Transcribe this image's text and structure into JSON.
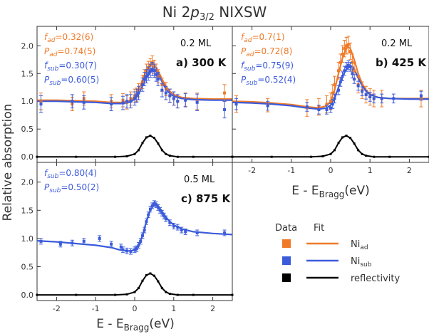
{
  "figure": {
    "title_main": "Ni 2",
    "title_p": "p",
    "title_sub": "3/2",
    "title_end": " NIXSW",
    "ylabel": "Relative absorption",
    "xlabel_main": "E - E",
    "xlabel_sub": "Bragg",
    "xlabel_unit": "(eV)"
  },
  "colors": {
    "ad": "#f07a28",
    "sub": "#3b5bdb",
    "refl": "#000000",
    "axis": "#333333"
  },
  "panels": [
    {
      "id": "a",
      "coverage": "0.2 ML",
      "label": "a) 300 K",
      "params": [
        {
          "sym": "f",
          "sub": "ad",
          "val": "=0.32(6)",
          "kind": "ad"
        },
        {
          "sym": "P",
          "sub": "ad",
          "val": "=0.74(5)",
          "kind": "ad"
        },
        {
          "sym": "f",
          "sub": "sub",
          "val": "=0.30(7)",
          "kind": "sub"
        },
        {
          "sym": "P",
          "sub": "sub",
          "val": "=0.60(5)",
          "kind": "sub"
        }
      ]
    },
    {
      "id": "b",
      "coverage": "0.2 ML",
      "label": "b) 425 K",
      "params": [
        {
          "sym": "f",
          "sub": "ad",
          "val": "=0.7(1)",
          "kind": "ad"
        },
        {
          "sym": "P",
          "sub": "ad",
          "val": "=0.72(8)",
          "kind": "ad"
        },
        {
          "sym": "f",
          "sub": "sub",
          "val": "=0.75(9)",
          "kind": "sub"
        },
        {
          "sym": "P",
          "sub": "sub",
          "val": "=0.52(4)",
          "kind": "sub"
        }
      ]
    },
    {
      "id": "c",
      "coverage": "0.5 ML",
      "label": "c) 875 K",
      "params": [
        {
          "sym": "f",
          "sub": "sub",
          "val": "=0.80(4)",
          "kind": "sub"
        },
        {
          "sym": "P",
          "sub": "sub",
          "val": "=0.50(2)",
          "kind": "sub"
        }
      ]
    }
  ],
  "legend": {
    "data_header": "Data",
    "fit_header": "Fit",
    "entries": [
      {
        "base": "Ni",
        "sub": "ad",
        "kind": "ad"
      },
      {
        "base": "Ni",
        "sub": "sub",
        "kind": "sub"
      },
      {
        "base": "reflectivity",
        "sub": "",
        "kind": "refl"
      }
    ]
  },
  "chart_data": [
    {
      "type": "line",
      "panel": "a",
      "xlim": [
        -2.5,
        2.5
      ],
      "ylim": [
        -0.1,
        2.35
      ],
      "xticks": [
        -2,
        -1,
        0,
        1,
        2
      ],
      "xticklabels_visible": false,
      "yticks": [
        0.0,
        0.5,
        1.0,
        1.5,
        2.0
      ],
      "yticklabels": [
        "0.0",
        "0.5",
        "1.0",
        "1.5",
        "2.0"
      ],
      "series": [
        {
          "name": "Ni_ad data",
          "kind": "ad",
          "role": "data",
          "x": [
            -2.4,
            -1.6,
            -1.3,
            -0.6,
            -0.3,
            -0.2,
            -0.1,
            0.0,
            0.05,
            0.1,
            0.2,
            0.25,
            0.3,
            0.35,
            0.4,
            0.45,
            0.5,
            0.55,
            0.6,
            0.7,
            0.8,
            0.9,
            1.0,
            1.1,
            1.3,
            1.6,
            2.3
          ],
          "y": [
            1.0,
            0.95,
            1.05,
            1.0,
            1.02,
            0.98,
            1.05,
            1.1,
            1.12,
            1.2,
            1.35,
            1.45,
            1.55,
            1.6,
            1.65,
            1.7,
            1.62,
            1.55,
            1.45,
            1.3,
            1.22,
            1.1,
            1.05,
            1.0,
            1.03,
            1.0,
            1.15
          ],
          "err": [
            0.15,
            0.12,
            0.12,
            0.12,
            0.12,
            0.12,
            0.12,
            0.12,
            0.12,
            0.12,
            0.12,
            0.12,
            0.12,
            0.12,
            0.12,
            0.12,
            0.12,
            0.12,
            0.12,
            0.12,
            0.12,
            0.12,
            0.12,
            0.12,
            0.12,
            0.15,
            0.15
          ]
        },
        {
          "name": "Ni_sub data",
          "kind": "sub",
          "role": "data",
          "x": [
            -2.4,
            -1.6,
            -1.3,
            -0.6,
            -0.3,
            -0.2,
            -0.1,
            0.0,
            0.05,
            0.1,
            0.2,
            0.25,
            0.3,
            0.35,
            0.4,
            0.45,
            0.5,
            0.55,
            0.6,
            0.7,
            0.8,
            0.9,
            1.0,
            1.1,
            1.3,
            1.6,
            2.3
          ],
          "y": [
            0.95,
            1.0,
            0.98,
            0.95,
            0.97,
            1.0,
            1.0,
            1.05,
            1.1,
            1.15,
            1.3,
            1.4,
            1.45,
            1.5,
            1.55,
            1.58,
            1.55,
            1.48,
            1.4,
            1.2,
            1.15,
            1.1,
            1.05,
            1.0,
            1.02,
            0.98,
            0.85
          ],
          "err": [
            0.15,
            0.12,
            0.12,
            0.12,
            0.12,
            0.12,
            0.12,
            0.12,
            0.12,
            0.12,
            0.12,
            0.12,
            0.12,
            0.12,
            0.12,
            0.12,
            0.12,
            0.12,
            0.12,
            0.12,
            0.12,
            0.12,
            0.12,
            0.12,
            0.12,
            0.15,
            0.15
          ]
        },
        {
          "name": "Ni_ad fit",
          "kind": "ad",
          "role": "fit",
          "x": [
            -2.5,
            -2.0,
            -1.5,
            -1.0,
            -0.6,
            -0.3,
            -0.1,
            0.0,
            0.1,
            0.2,
            0.3,
            0.4,
            0.45,
            0.5,
            0.6,
            0.7,
            0.8,
            0.9,
            1.0,
            1.2,
            1.5,
            2.0,
            2.5
          ],
          "y": [
            1.02,
            1.02,
            1.01,
            1.0,
            0.98,
            0.98,
            1.02,
            1.08,
            1.2,
            1.38,
            1.55,
            1.66,
            1.68,
            1.66,
            1.55,
            1.4,
            1.27,
            1.18,
            1.12,
            1.07,
            1.05,
            1.04,
            1.04
          ]
        },
        {
          "name": "Ni_sub fit",
          "kind": "sub",
          "role": "fit",
          "x": [
            -2.5,
            -2.0,
            -1.5,
            -1.0,
            -0.6,
            -0.3,
            -0.1,
            0.0,
            0.1,
            0.2,
            0.3,
            0.4,
            0.5,
            0.55,
            0.6,
            0.7,
            0.8,
            0.9,
            1.0,
            1.2,
            1.5,
            2.0,
            2.5
          ],
          "y": [
            1.0,
            1.0,
            0.99,
            0.98,
            0.96,
            0.96,
            0.99,
            1.04,
            1.13,
            1.28,
            1.42,
            1.52,
            1.57,
            1.56,
            1.5,
            1.35,
            1.22,
            1.14,
            1.09,
            1.05,
            1.03,
            1.02,
            1.02
          ]
        },
        {
          "name": "reflectivity",
          "kind": "refl",
          "role": "fit",
          "x": [
            -2.5,
            -1.5,
            -0.5,
            -0.2,
            0.0,
            0.1,
            0.2,
            0.3,
            0.4,
            0.5,
            0.6,
            0.7,
            0.8,
            0.9,
            1.1,
            1.5,
            2.5
          ],
          "y": [
            0.0,
            0.0,
            0.0,
            0.01,
            0.05,
            0.12,
            0.25,
            0.35,
            0.38,
            0.34,
            0.24,
            0.12,
            0.05,
            0.02,
            0.0,
            0.0,
            0.0
          ]
        }
      ]
    },
    {
      "type": "line",
      "panel": "b",
      "xlim": [
        -2.5,
        2.5
      ],
      "ylim": [
        -0.1,
        2.35
      ],
      "xticks": [
        -2,
        -1,
        0,
        1,
        2
      ],
      "xticklabels": [
        "-2",
        "-1",
        "0",
        "1",
        "2"
      ],
      "series": [
        {
          "name": "Ni_ad data",
          "kind": "ad",
          "role": "data",
          "x": [
            -2.4,
            -1.6,
            -0.6,
            -0.3,
            -0.1,
            0.0,
            0.05,
            0.1,
            0.2,
            0.25,
            0.3,
            0.35,
            0.4,
            0.45,
            0.5,
            0.55,
            0.6,
            0.7,
            0.8,
            0.9,
            1.0,
            1.1,
            1.3,
            2.3
          ],
          "y": [
            0.95,
            0.93,
            0.88,
            0.9,
            0.95,
            1.0,
            1.15,
            1.3,
            1.55,
            1.7,
            1.85,
            1.95,
            2.0,
            2.02,
            1.9,
            1.7,
            1.55,
            1.3,
            1.2,
            1.12,
            1.08,
            1.05,
            1.05,
            1.05
          ],
          "err": [
            0.15,
            0.12,
            0.15,
            0.15,
            0.15,
            0.15,
            0.15,
            0.15,
            0.15,
            0.15,
            0.15,
            0.15,
            0.15,
            0.15,
            0.15,
            0.15,
            0.15,
            0.15,
            0.15,
            0.15,
            0.15,
            0.15,
            0.15,
            0.15
          ]
        },
        {
          "name": "Ni_sub data",
          "kind": "sub",
          "role": "data",
          "x": [
            -2.4,
            -1.6,
            -0.6,
            -0.3,
            -0.1,
            0.0,
            0.05,
            0.1,
            0.2,
            0.25,
            0.3,
            0.35,
            0.4,
            0.45,
            0.5,
            0.55,
            0.6,
            0.7,
            0.8,
            0.9,
            1.0,
            1.1,
            1.3,
            1.6,
            2.3
          ],
          "y": [
            0.95,
            0.92,
            0.9,
            0.85,
            0.85,
            0.88,
            0.95,
            1.05,
            1.2,
            1.35,
            1.45,
            1.55,
            1.62,
            1.65,
            1.62,
            1.5,
            1.4,
            1.28,
            1.18,
            1.12,
            1.08,
            1.05,
            1.05,
            1.05,
            1.1
          ],
          "err": [
            0.1,
            0.08,
            0.08,
            0.08,
            0.08,
            0.08,
            0.08,
            0.08,
            0.08,
            0.08,
            0.08,
            0.08,
            0.08,
            0.08,
            0.08,
            0.08,
            0.08,
            0.08,
            0.08,
            0.08,
            0.08,
            0.08,
            0.08,
            0.08,
            0.08
          ]
        },
        {
          "name": "Ni_ad fit",
          "kind": "ad",
          "role": "fit",
          "x": [
            -2.5,
            -2.0,
            -1.5,
            -1.0,
            -0.6,
            -0.3,
            -0.1,
            0.0,
            0.1,
            0.2,
            0.3,
            0.4,
            0.45,
            0.5,
            0.6,
            0.7,
            0.8,
            0.9,
            1.0,
            1.2,
            1.5,
            2.0,
            2.5
          ],
          "y": [
            1.0,
            0.99,
            0.97,
            0.94,
            0.9,
            0.88,
            0.92,
            1.0,
            1.2,
            1.5,
            1.78,
            1.95,
            1.98,
            1.95,
            1.75,
            1.5,
            1.32,
            1.2,
            1.13,
            1.07,
            1.05,
            1.05,
            1.05
          ]
        },
        {
          "name": "Ni_sub fit",
          "kind": "sub",
          "role": "fit",
          "x": [
            -2.5,
            -2.0,
            -1.5,
            -1.0,
            -0.6,
            -0.3,
            -0.1,
            0.0,
            0.1,
            0.2,
            0.3,
            0.4,
            0.5,
            0.55,
            0.6,
            0.7,
            0.8,
            0.9,
            1.0,
            1.2,
            1.5,
            2.0,
            2.5
          ],
          "y": [
            0.98,
            0.97,
            0.95,
            0.92,
            0.88,
            0.86,
            0.88,
            0.93,
            1.05,
            1.25,
            1.45,
            1.58,
            1.64,
            1.63,
            1.58,
            1.42,
            1.28,
            1.18,
            1.12,
            1.07,
            1.05,
            1.04,
            1.04
          ]
        },
        {
          "name": "reflectivity",
          "kind": "refl",
          "role": "fit",
          "x": [
            -2.5,
            -1.5,
            -0.5,
            -0.2,
            0.0,
            0.1,
            0.2,
            0.3,
            0.4,
            0.5,
            0.6,
            0.7,
            0.8,
            0.9,
            1.1,
            1.5,
            2.5
          ],
          "y": [
            0.0,
            0.0,
            0.0,
            0.01,
            0.05,
            0.12,
            0.25,
            0.35,
            0.38,
            0.34,
            0.24,
            0.12,
            0.05,
            0.02,
            0.0,
            0.0,
            0.0
          ]
        }
      ]
    },
    {
      "type": "line",
      "panel": "c",
      "xlim": [
        -2.5,
        2.5
      ],
      "ylim": [
        -0.1,
        2.35
      ],
      "xticks": [
        -2,
        -1,
        0,
        1,
        2
      ],
      "xticklabels": [
        "-2",
        "-1",
        "0",
        "1",
        "2"
      ],
      "yticks": [
        0.0,
        0.5,
        1.0,
        1.5,
        2.0
      ],
      "yticklabels": [
        "0.0",
        "0.5",
        "1.0",
        "1.5",
        "2.0"
      ],
      "series": [
        {
          "name": "Ni_sub data",
          "kind": "sub",
          "role": "data",
          "x": [
            -2.4,
            -1.9,
            -1.6,
            -1.3,
            -0.9,
            -0.6,
            -0.35,
            -0.3,
            -0.2,
            -0.1,
            0.0,
            0.05,
            0.1,
            0.15,
            0.2,
            0.25,
            0.3,
            0.35,
            0.4,
            0.45,
            0.5,
            0.55,
            0.6,
            0.65,
            0.7,
            0.75,
            0.8,
            0.9,
            1.0,
            1.1,
            1.2,
            1.3,
            1.6,
            2.3
          ],
          "y": [
            0.95,
            0.9,
            0.92,
            0.95,
            1.0,
            0.9,
            0.85,
            0.8,
            0.78,
            0.77,
            0.8,
            0.82,
            0.88,
            0.95,
            1.05,
            1.15,
            1.3,
            1.42,
            1.52,
            1.58,
            1.62,
            1.6,
            1.55,
            1.5,
            1.45,
            1.4,
            1.35,
            1.28,
            1.22,
            1.2,
            1.15,
            1.12,
            1.1,
            1.1
          ],
          "err": [
            0.05,
            0.05,
            0.05,
            0.05,
            0.05,
            0.05,
            0.05,
            0.05,
            0.05,
            0.05,
            0.05,
            0.05,
            0.05,
            0.05,
            0.05,
            0.05,
            0.05,
            0.05,
            0.05,
            0.05,
            0.05,
            0.05,
            0.05,
            0.05,
            0.05,
            0.05,
            0.05,
            0.05,
            0.05,
            0.05,
            0.05,
            0.05,
            0.05,
            0.05
          ]
        },
        {
          "name": "Ni_sub fit",
          "kind": "sub",
          "role": "fit",
          "x": [
            -2.5,
            -2.0,
            -1.5,
            -1.0,
            -0.6,
            -0.4,
            -0.2,
            -0.1,
            0.0,
            0.1,
            0.2,
            0.3,
            0.4,
            0.5,
            0.55,
            0.6,
            0.7,
            0.8,
            0.9,
            1.0,
            1.2,
            1.5,
            2.0,
            2.5
          ],
          "y": [
            0.96,
            0.94,
            0.91,
            0.88,
            0.84,
            0.8,
            0.78,
            0.78,
            0.8,
            0.88,
            1.05,
            1.3,
            1.5,
            1.6,
            1.61,
            1.58,
            1.48,
            1.38,
            1.3,
            1.24,
            1.17,
            1.12,
            1.09,
            1.07
          ]
        },
        {
          "name": "reflectivity",
          "kind": "refl",
          "role": "fit",
          "x": [
            -2.5,
            -1.5,
            -0.5,
            -0.2,
            0.0,
            0.1,
            0.2,
            0.3,
            0.4,
            0.5,
            0.6,
            0.7,
            0.8,
            0.9,
            1.1,
            1.5,
            2.5
          ],
          "y": [
            0.0,
            0.0,
            0.0,
            0.01,
            0.05,
            0.12,
            0.25,
            0.35,
            0.38,
            0.34,
            0.24,
            0.12,
            0.05,
            0.02,
            0.0,
            0.0,
            0.0
          ]
        }
      ]
    }
  ]
}
